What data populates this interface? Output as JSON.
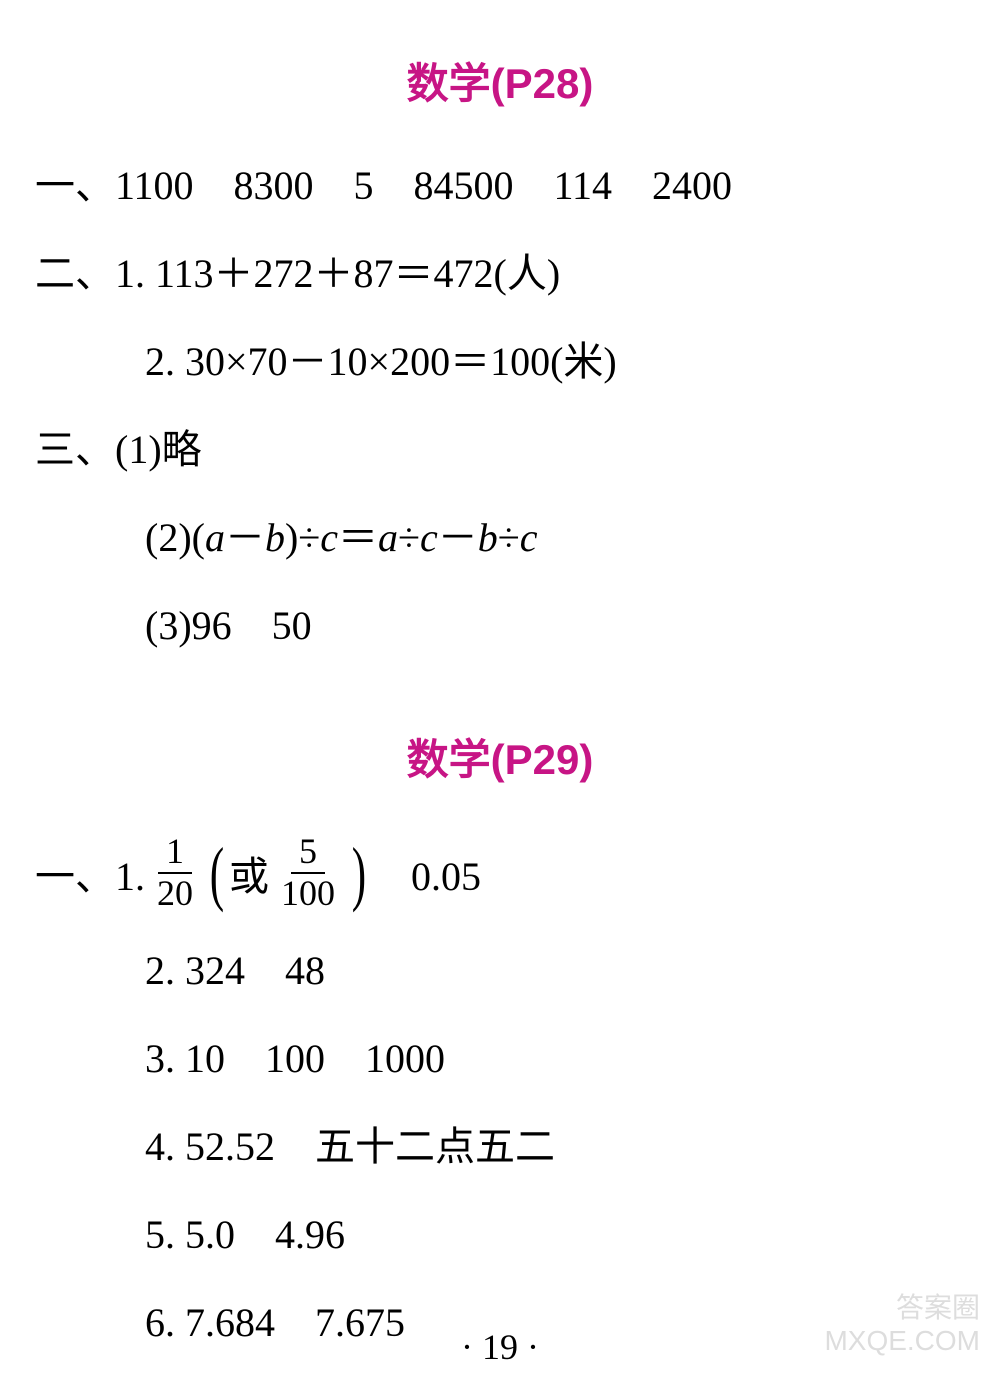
{
  "page28": {
    "title": "数学(P28)",
    "q1": "一、1100　8300　5　84500　114　2400",
    "q2_1": "二、1. 113＋272＋87＝472(人)",
    "q2_2": "2. 30×70－10×200＝100(米)",
    "q3_1": "三、(1)略",
    "q3_2_prefix": "(2)(",
    "q3_2_a": "a",
    "q3_2_minus": "－",
    "q3_2_b": "b",
    "q3_2_mid1": ")÷",
    "q3_2_c1": "c",
    "q3_2_eq": "＝",
    "q3_2_a2": "a",
    "q3_2_div1": "÷",
    "q3_2_c2": "c",
    "q3_2_minus2": "－",
    "q3_2_b2": "b",
    "q3_2_div2": "÷",
    "q3_2_c3": "c",
    "q3_3": "(3)96　50"
  },
  "page29": {
    "title": "数学(P29)",
    "q1_prefix": "一、1. ",
    "frac1_num": "1",
    "frac1_den": "20",
    "or_text": "或",
    "frac2_num": "5",
    "frac2_den": "100",
    "q1_suffix": "　0.05",
    "q2": "2. 324　48",
    "q3": "3. 10　100　1000",
    "q4": "4. 52.52　五十二点五二",
    "q5": "5. 5.0　4.96",
    "q6": "6. 7.684　7.675"
  },
  "pageNumber": "· 19 ·",
  "watermark1": "答案圈",
  "watermark2": "MXQE.COM"
}
